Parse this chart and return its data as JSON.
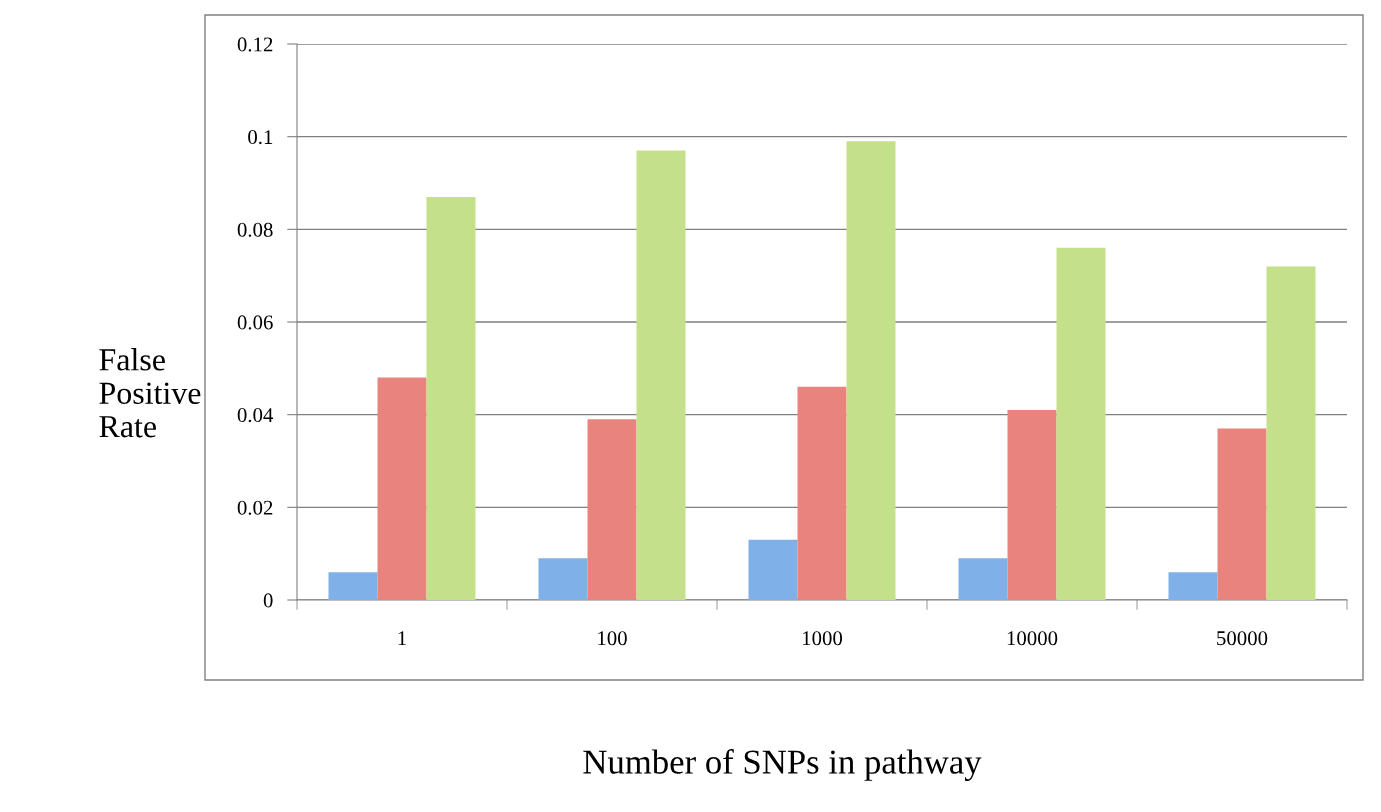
{
  "chart_data": {
    "type": "bar",
    "xlabel": "Number of SNPs in pathway",
    "ylabel": "False\nPositive\nRate",
    "categories": [
      "1",
      "100",
      "1000",
      "10000",
      "50000"
    ],
    "series": [
      {
        "color": "#7fb0e8",
        "values": [
          0.006,
          0.009,
          0.013,
          0.009,
          0.006
        ]
      },
      {
        "color": "#e8837e",
        "values": [
          0.048,
          0.039,
          0.046,
          0.041,
          0.037
        ]
      },
      {
        "color": "#c5e08a",
        "values": [
          0.087,
          0.097,
          0.099,
          0.076,
          0.072
        ]
      }
    ],
    "ylim": [
      0,
      0.12
    ],
    "yticks": [
      0,
      0.02,
      0.04,
      0.06,
      0.08,
      0.1,
      0.12
    ],
    "grid": "y",
    "legend": false
  }
}
